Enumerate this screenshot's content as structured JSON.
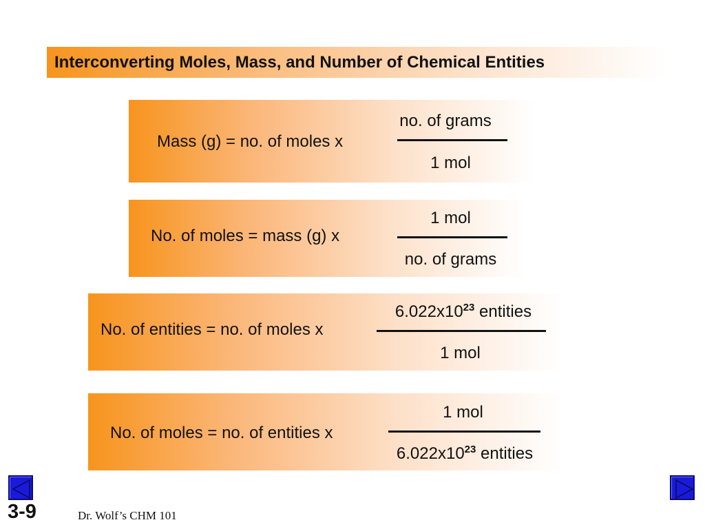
{
  "slide": {
    "title": "Interconverting Moles, Mass, and Number of Chemical Entities",
    "number": "3-9",
    "footer": "Dr. Wolf’s CHM 101"
  },
  "equations": [
    {
      "lhs": "Mass (g) = no. of moles x",
      "numerator": "no. of grams",
      "denominator": "1 mol"
    },
    {
      "lhs": "No. of moles = mass (g) x",
      "numerator": "1 mol",
      "denominator": "no. of grams"
    },
    {
      "lhs": "No. of entities = no. of moles x",
      "numerator_base": "6.022x10",
      "numerator_exp": "23",
      "numerator_unit": " entities",
      "denominator": "1 mol"
    },
    {
      "lhs": "No. of moles = no. of entities x",
      "numerator": "1 mol",
      "denominator_base": "6.022x10",
      "denominator_exp": "23",
      "denominator_unit": " entities"
    }
  ],
  "nav": {
    "prev_icon": "triangle-left-icon",
    "next_icon": "triangle-right-icon"
  },
  "colors": {
    "gradient_start": "#f7941d",
    "nav_button": "#1a1adb"
  }
}
